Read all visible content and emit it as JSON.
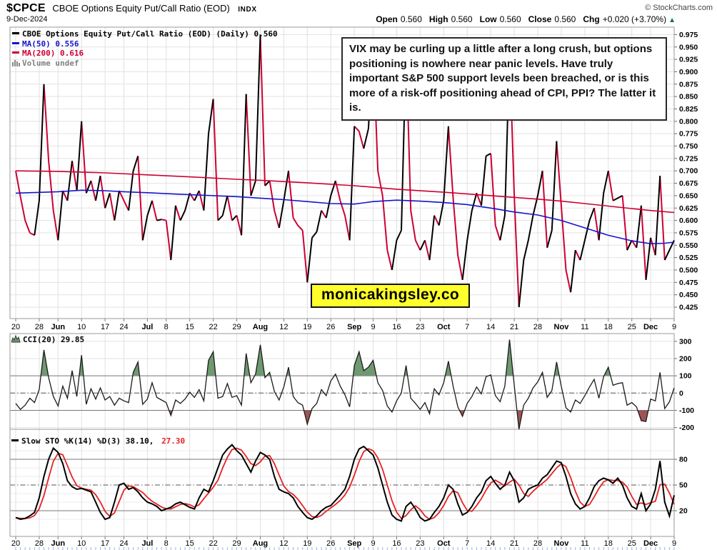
{
  "header": {
    "symbol": "$CPCE",
    "title": "CBOE Options Equity Put/Call Ratio (EOD)",
    "exchange": "INDX",
    "copyright": "© StockCharts.com",
    "date": "9-Dec-2024",
    "ohlc": {
      "open_label": "Open",
      "open": "0.560",
      "high_label": "High",
      "high": "0.560",
      "low_label": "Low",
      "low": "0.560",
      "close_label": "Close",
      "close": "0.560",
      "chg_label": "Chg",
      "chg": "+0.020 (+3.70%)",
      "arrow": "▲"
    }
  },
  "annotation": {
    "text": "VIX may be curling up a little after a long crush, but options positioning is nowhere near panic levels. Have truly important S&P 500 support levels been breached, or is this more of a risk-off positioning ahead of CPI, PPI? The latter it is."
  },
  "watermark": {
    "text": "monicakingsley.co"
  },
  "legend_main": {
    "price": "CBOE Options Equity Put/Call Ratio (EOD) (Daily) 0.560",
    "ma50": "MA(50) 0.556",
    "ma200": "MA(200) 0.616",
    "volume": "Volume undef"
  },
  "legend_cci": {
    "label": "CCI(20) 29.85"
  },
  "legend_sto": {
    "black": "Slow STO %K(14) %D(3) 38.10,",
    "red": "27.30"
  },
  "colors": {
    "price_up": "#000000",
    "price_down": "#cc0033",
    "ma50": "#1414cc",
    "ma200": "#cc0033",
    "cci_line": "#1a1a1a",
    "cci_fill_above": "#6f9970",
    "cci_fill_below": "#9e5555",
    "sto_k": "#000000",
    "sto_d": "#e62222",
    "volume": "#808080",
    "chg_arrow": "#0b7a33",
    "watermark_bg": "#ffff2b"
  },
  "chart_data": [
    {
      "id": "main",
      "type": "line",
      "title": "CBOE Options Equity Put/Call Ratio (EOD) (Daily)",
      "last_value": 0.56,
      "ylim": [
        0.425,
        0.975
      ],
      "ystep": 0.025,
      "grid": true,
      "legend_position": "top-left",
      "x_ticks": [
        {
          "l": "20",
          "d": 0,
          "m": false
        },
        {
          "l": "28",
          "d": 5,
          "m": false
        },
        {
          "l": "Jun",
          "d": 9,
          "m": true
        },
        {
          "l": "10",
          "d": 14,
          "m": false
        },
        {
          "l": "17",
          "d": 19,
          "m": false
        },
        {
          "l": "24",
          "d": 23,
          "m": false
        },
        {
          "l": "Jul",
          "d": 28,
          "m": true
        },
        {
          "l": "8",
          "d": 32,
          "m": false
        },
        {
          "l": "15",
          "d": 37,
          "m": false
        },
        {
          "l": "22",
          "d": 42,
          "m": false
        },
        {
          "l": "29",
          "d": 47,
          "m": false
        },
        {
          "l": "Aug",
          "d": 52,
          "m": true
        },
        {
          "l": "12",
          "d": 57,
          "m": false
        },
        {
          "l": "19",
          "d": 62,
          "m": false
        },
        {
          "l": "26",
          "d": 67,
          "m": false
        },
        {
          "l": "Sep",
          "d": 72,
          "m": true
        },
        {
          "l": "9",
          "d": 76,
          "m": false
        },
        {
          "l": "16",
          "d": 81,
          "m": false
        },
        {
          "l": "23",
          "d": 86,
          "m": false
        },
        {
          "l": "Oct",
          "d": 91,
          "m": true
        },
        {
          "l": "7",
          "d": 96,
          "m": false
        },
        {
          "l": "14",
          "d": 101,
          "m": false
        },
        {
          "l": "21",
          "d": 106,
          "m": false
        },
        {
          "l": "28",
          "d": 111,
          "m": false
        },
        {
          "l": "Nov",
          "d": 116,
          "m": true
        },
        {
          "l": "11",
          "d": 121,
          "m": false
        },
        {
          "l": "18",
          "d": 126,
          "m": false
        },
        {
          "l": "25",
          "d": 131,
          "m": false
        },
        {
          "l": "Dec",
          "d": 135,
          "m": true
        },
        {
          "l": "9",
          "d": 140,
          "m": false
        }
      ],
      "series": [
        {
          "name": "CBOE Options Equity Put/Call Ratio (EOD)",
          "style": "two-color-line",
          "values": [
            0.7,
            0.648,
            0.6,
            0.575,
            0.57,
            0.64,
            0.875,
            0.72,
            0.62,
            0.56,
            0.66,
            0.64,
            0.72,
            0.66,
            0.8,
            0.655,
            0.68,
            0.64,
            0.69,
            0.625,
            0.655,
            0.6,
            0.66,
            0.64,
            0.62,
            0.7,
            0.73,
            0.56,
            0.61,
            0.64,
            0.6,
            0.602,
            0.6,
            0.52,
            0.63,
            0.6,
            0.62,
            0.655,
            0.64,
            0.66,
            0.62,
            0.775,
            0.845,
            0.6,
            0.61,
            0.65,
            0.6,
            0.61,
            0.57,
            0.855,
            0.65,
            0.68,
            0.975,
            0.67,
            0.68,
            0.62,
            0.585,
            0.64,
            0.7,
            0.605,
            0.59,
            0.58,
            0.475,
            0.565,
            0.577,
            0.62,
            0.605,
            0.65,
            0.68,
            0.64,
            0.61,
            0.56,
            0.79,
            0.78,
            0.745,
            0.785,
            0.955,
            0.7,
            0.65,
            0.54,
            0.5,
            0.56,
            0.58,
            0.95,
            0.62,
            0.56,
            0.54,
            0.56,
            0.52,
            0.61,
            0.59,
            0.64,
            0.79,
            0.645,
            0.53,
            0.48,
            0.56,
            0.62,
            0.655,
            0.63,
            0.73,
            0.735,
            0.59,
            0.56,
            0.61,
            0.94,
            0.65,
            0.425,
            0.52,
            0.56,
            0.61,
            0.65,
            0.7,
            0.545,
            0.58,
            0.76,
            0.63,
            0.5,
            0.455,
            0.54,
            0.52,
            0.56,
            0.6,
            0.625,
            0.56,
            0.655,
            0.7,
            0.64,
            0.645,
            0.65,
            0.54,
            0.56,
            0.545,
            0.63,
            0.48,
            0.565,
            0.53,
            0.69,
            0.52,
            0.54,
            0.56
          ]
        },
        {
          "name": "MA(50)",
          "value": 0.556,
          "points": [
            [
              0,
              0.655
            ],
            [
              9,
              0.658
            ],
            [
              14,
              0.661
            ],
            [
              19,
              0.66
            ],
            [
              23,
              0.658
            ],
            [
              28,
              0.656
            ],
            [
              37,
              0.652
            ],
            [
              47,
              0.648
            ],
            [
              52,
              0.645
            ],
            [
              57,
              0.642
            ],
            [
              62,
              0.638
            ],
            [
              67,
              0.634
            ],
            [
              72,
              0.633
            ],
            [
              76,
              0.638
            ],
            [
              81,
              0.641
            ],
            [
              86,
              0.639
            ],
            [
              91,
              0.636
            ],
            [
              96,
              0.632
            ],
            [
              101,
              0.625
            ],
            [
              106,
              0.617
            ],
            [
              111,
              0.611
            ],
            [
              116,
              0.6
            ],
            [
              121,
              0.585
            ],
            [
              126,
              0.57
            ],
            [
              131,
              0.559
            ],
            [
              135,
              0.553
            ],
            [
              138,
              0.554
            ],
            [
              140,
              0.556
            ]
          ]
        },
        {
          "name": "MA(200)",
          "value": 0.616,
          "points": [
            [
              0,
              0.7
            ],
            [
              9,
              0.699
            ],
            [
              19,
              0.696
            ],
            [
              28,
              0.692
            ],
            [
              37,
              0.688
            ],
            [
              47,
              0.683
            ],
            [
              52,
              0.681
            ],
            [
              62,
              0.676
            ],
            [
              72,
              0.67
            ],
            [
              81,
              0.663
            ],
            [
              91,
              0.657
            ],
            [
              101,
              0.65
            ],
            [
              111,
              0.643
            ],
            [
              116,
              0.639
            ],
            [
              121,
              0.634
            ],
            [
              126,
              0.629
            ],
            [
              131,
              0.624
            ],
            [
              135,
              0.62
            ],
            [
              140,
              0.616
            ]
          ]
        }
      ]
    },
    {
      "id": "cci",
      "type": "line",
      "label": "CCI(20)",
      "last_value": 29.85,
      "y_ticks": [
        300,
        200,
        100,
        0,
        -100,
        -200
      ],
      "thresholds": {
        "upper": 100,
        "lower": -100,
        "mid": 0
      },
      "fill_above": "#6f9970",
      "fill_below": "#9e5555",
      "line_color": "#1a1a1a",
      "values": [
        -60,
        -95,
        -70,
        -30,
        -55,
        20,
        250,
        90,
        -20,
        -75,
        40,
        -30,
        130,
        -20,
        220,
        -65,
        25,
        -35,
        30,
        -40,
        -20,
        -70,
        -30,
        -45,
        -55,
        120,
        180,
        -65,
        -35,
        60,
        -25,
        -40,
        -55,
        -130,
        -40,
        -60,
        -35,
        5,
        -25,
        20,
        -45,
        190,
        240,
        -30,
        -20,
        55,
        -25,
        -15,
        -70,
        230,
        60,
        110,
        280,
        90,
        120,
        10,
        -40,
        35,
        150,
        -20,
        -55,
        -70,
        -180,
        -90,
        -60,
        20,
        -15,
        70,
        110,
        40,
        -10,
        -80,
        160,
        240,
        130,
        150,
        190,
        60,
        15,
        -75,
        -110,
        -45,
        0,
        160,
        -30,
        -60,
        -95,
        -55,
        -120,
        25,
        -10,
        60,
        185,
        40,
        -80,
        -135,
        -60,
        -20,
        35,
        -5,
        95,
        105,
        -15,
        -50,
        40,
        310,
        45,
        -210,
        -70,
        -30,
        30,
        65,
        120,
        -25,
        15,
        180,
        40,
        -85,
        -110,
        -40,
        -60,
        -15,
        35,
        80,
        -30,
        95,
        150,
        45,
        55,
        60,
        -70,
        -55,
        -80,
        -160,
        -165,
        -35,
        -45,
        120,
        -90,
        -50,
        29.85
      ]
    },
    {
      "id": "sto",
      "type": "line",
      "label": "Slow STO %K(14) %D(3)",
      "k_last": 38.1,
      "d_last": 27.3,
      "y_ticks": [
        80,
        50,
        20
      ],
      "thresholds": {
        "upper": 80,
        "lower": 20,
        "mid": 50
      },
      "k_values": [
        12,
        10,
        11,
        14,
        18,
        35,
        60,
        80,
        93,
        88,
        75,
        55,
        48,
        45,
        46,
        44,
        42,
        30,
        18,
        10,
        12,
        30,
        50,
        52,
        45,
        47,
        42,
        35,
        30,
        28,
        25,
        20,
        22,
        24,
        28,
        30,
        27,
        24,
        22,
        35,
        45,
        42,
        55,
        70,
        85,
        92,
        97,
        90,
        85,
        75,
        65,
        78,
        88,
        85,
        80,
        60,
        45,
        42,
        40,
        35,
        25,
        18,
        12,
        10,
        14,
        20,
        24,
        26,
        32,
        38,
        45,
        60,
        80,
        92,
        95,
        90,
        85,
        70,
        50,
        30,
        15,
        10,
        8,
        25,
        30,
        22,
        12,
        8,
        10,
        18,
        25,
        35,
        50,
        45,
        28,
        15,
        18,
        25,
        35,
        42,
        55,
        60,
        52,
        45,
        50,
        65,
        55,
        30,
        35,
        45,
        48,
        50,
        58,
        62,
        70,
        78,
        76,
        60,
        40,
        28,
        22,
        25,
        35,
        48,
        55,
        58,
        56,
        52,
        58,
        50,
        35,
        25,
        22,
        40,
        20,
        28,
        45,
        78,
        30,
        13.8,
        38.1
      ]
    }
  ]
}
